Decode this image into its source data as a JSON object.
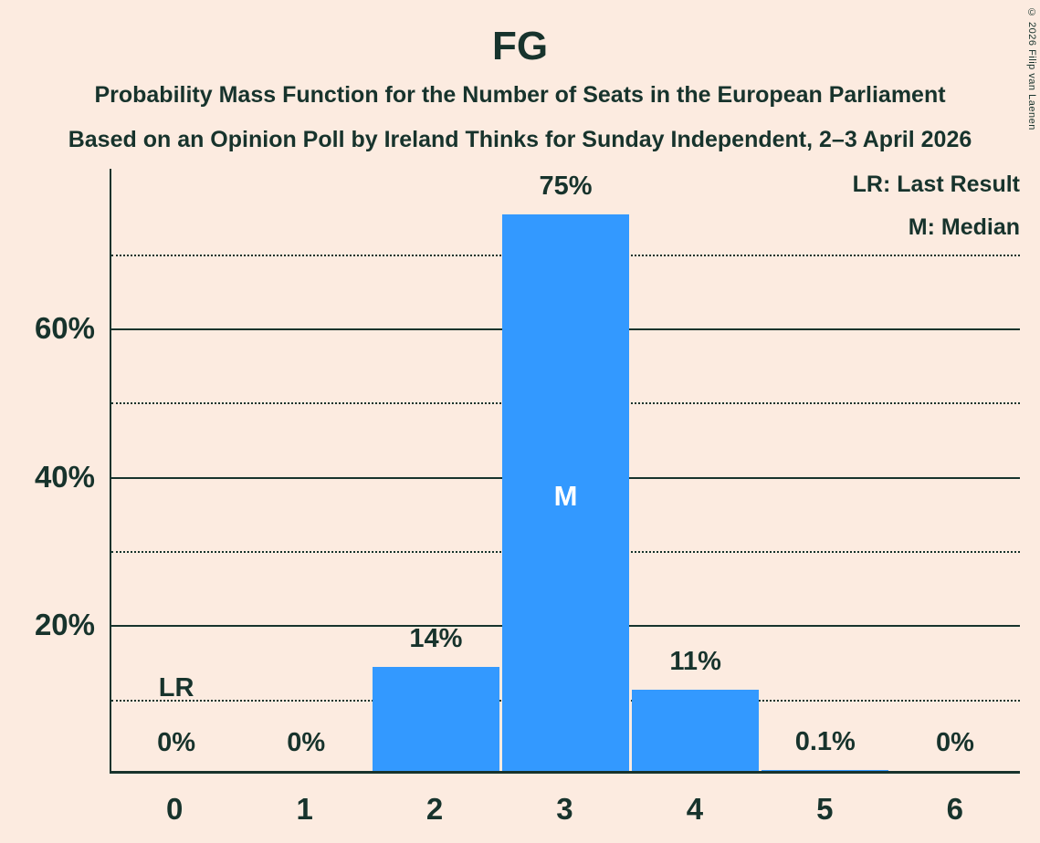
{
  "title": "FG",
  "subtitle1": "Probability Mass Function for the Number of Seats in the European Parliament",
  "subtitle2": "Based on an Opinion Poll by Ireland Thinks for Sunday Independent, 2–3 April 2026",
  "copyright": "© 2026 Filip van Laenen",
  "legend": {
    "lr": "LR: Last Result",
    "m": "M: Median"
  },
  "colors": {
    "background": "#fcebe0",
    "bar": "#3399ff",
    "text": "#17332c",
    "median_text": "#ffffff"
  },
  "chart_data": {
    "type": "bar",
    "title": "FG",
    "categories": [
      "0",
      "1",
      "2",
      "3",
      "4",
      "5",
      "6"
    ],
    "values": [
      0,
      0,
      14,
      75,
      11,
      0.1,
      0
    ],
    "value_labels": [
      "0%",
      "0%",
      "14%",
      "75%",
      "11%",
      "0.1%",
      "0%"
    ],
    "ylim": [
      0,
      81.5
    ],
    "yticks": [
      {
        "value": 20,
        "label": "20%"
      },
      {
        "value": 40,
        "label": "40%"
      },
      {
        "value": 60,
        "label": "60%"
      }
    ],
    "solid_gridlines": [
      20,
      40,
      60
    ],
    "dotted_gridlines": [
      10,
      30,
      50,
      70
    ],
    "grid": "on",
    "legend_position": "top-right",
    "median_seat": "3",
    "median_label": "M",
    "last_result_seat": "0",
    "last_result_label": "LR"
  }
}
